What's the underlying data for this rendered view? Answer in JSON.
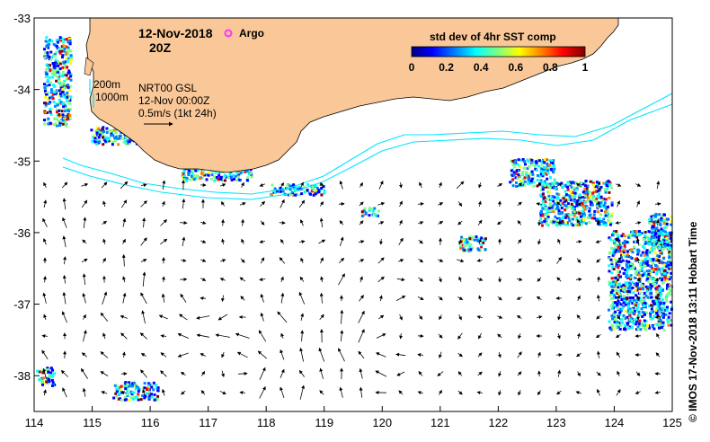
{
  "title": {
    "date": "12-Nov-2018",
    "time": "20Z"
  },
  "argo": {
    "label": "Argo",
    "color": "#ff33ff"
  },
  "depth_labels": [
    "200m",
    "1000m"
  ],
  "product": {
    "name": "NRT00 GSL",
    "datetime": "12-Nov 00:00Z",
    "scale": "0.5m/s (1kt 24h)"
  },
  "colorbar": {
    "title": "std dev of 4hr SST comp",
    "ticks": [
      "0",
      "0.2",
      "0.4",
      "0.6",
      "0.8",
      "1"
    ],
    "stops": [
      "#00007f",
      "#0000ff",
      "#007fff",
      "#00ffff",
      "#7fff7f",
      "#ffff00",
      "#ff7f00",
      "#ff0000",
      "#7f0000"
    ]
  },
  "axes": {
    "x_ticks": [
      "114",
      "115",
      "116",
      "117",
      "118",
      "119",
      "120",
      "121",
      "122",
      "123",
      "124",
      "125"
    ],
    "y_ticks": [
      "-33",
      "-34",
      "-35",
      "-36",
      "-37",
      "-38"
    ],
    "lon_range": [
      114,
      125
    ],
    "lat_range": [
      -33,
      -38.5
    ]
  },
  "colors": {
    "land": "#fac898",
    "isobath": "#00e5ff",
    "frame": "#000000"
  },
  "credit": "© IMOS 17-Nov-2018 13:11 Hobart Time"
}
